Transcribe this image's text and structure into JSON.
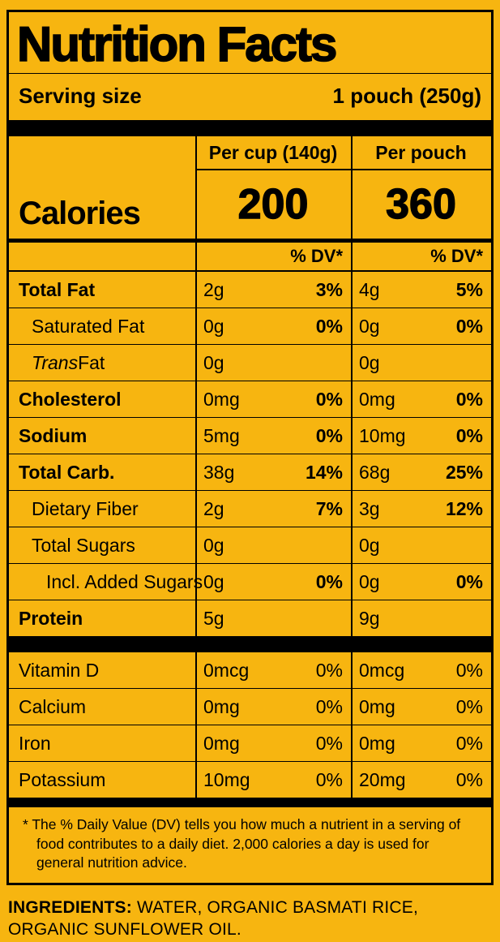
{
  "colors": {
    "background": "#F7B510",
    "ink": "#000000"
  },
  "header": {
    "title": "Nutrition Facts",
    "serving_size_label": "Serving size",
    "serving_size_value": "1 pouch (250g)"
  },
  "columns": {
    "per_cup": "Per cup (140g)",
    "per_pouch": "Per pouch",
    "dv_header": "% DV*"
  },
  "calories": {
    "label": "Calories",
    "per_cup": "200",
    "per_pouch": "360"
  },
  "rows": [
    {
      "name": "Total Fat",
      "cup_amt": "2g",
      "cup_dv": "3%",
      "pouch_amt": "4g",
      "pouch_dv": "5%"
    },
    {
      "name": "Saturated Fat",
      "cup_amt": "0g",
      "cup_dv": "0%",
      "pouch_amt": "0g",
      "pouch_dv": "0%"
    },
    {
      "name_it": "Trans",
      "name_rest": " Fat",
      "cup_amt": "0g",
      "cup_dv": "",
      "pouch_amt": "0g",
      "pouch_dv": ""
    },
    {
      "name": "Cholesterol",
      "cup_amt": "0mg",
      "cup_dv": "0%",
      "pouch_amt": "0mg",
      "pouch_dv": "0%"
    },
    {
      "name": "Sodium",
      "cup_amt": "5mg",
      "cup_dv": "0%",
      "pouch_amt": "10mg",
      "pouch_dv": "0%"
    },
    {
      "name": "Total Carb.",
      "cup_amt": "38g",
      "cup_dv": "14%",
      "pouch_amt": "68g",
      "pouch_dv": "25%"
    },
    {
      "name": "Dietary Fiber",
      "cup_amt": "2g",
      "cup_dv": "7%",
      "pouch_amt": "3g",
      "pouch_dv": "12%"
    },
    {
      "name": "Total Sugars",
      "cup_amt": "0g",
      "cup_dv": "",
      "pouch_amt": "0g",
      "pouch_dv": ""
    },
    {
      "name": "Incl. Added Sugars",
      "cup_amt": "0g",
      "cup_dv": "0%",
      "pouch_amt": "0g",
      "pouch_dv": "0%"
    },
    {
      "name": "Protein",
      "cup_amt": "5g",
      "cup_dv": "",
      "pouch_amt": "9g",
      "pouch_dv": ""
    }
  ],
  "vitamins": [
    {
      "name": "Vitamin D",
      "cup_amt": "0mcg",
      "cup_dv": "0%",
      "pouch_amt": "0mcg",
      "pouch_dv": "0%"
    },
    {
      "name": "Calcium",
      "cup_amt": "0mg",
      "cup_dv": "0%",
      "pouch_amt": "0mg",
      "pouch_dv": "0%"
    },
    {
      "name": "Iron",
      "cup_amt": "0mg",
      "cup_dv": "0%",
      "pouch_amt": "0mg",
      "pouch_dv": "0%"
    },
    {
      "name": "Potassium",
      "cup_amt": "10mg",
      "cup_dv": "0%",
      "pouch_amt": "20mg",
      "pouch_dv": "0%"
    }
  ],
  "footnote": "* The % Daily Value (DV) tells you how much a nutrient in a serving of food contributes to a daily diet. 2,000 calories a day is used for general nutrition advice.",
  "ingredients": {
    "label": "INGREDIENTS:",
    "text": "WATER, ORGANIC BASMATI RICE, ORGANIC SUNFLOWER OIL."
  }
}
